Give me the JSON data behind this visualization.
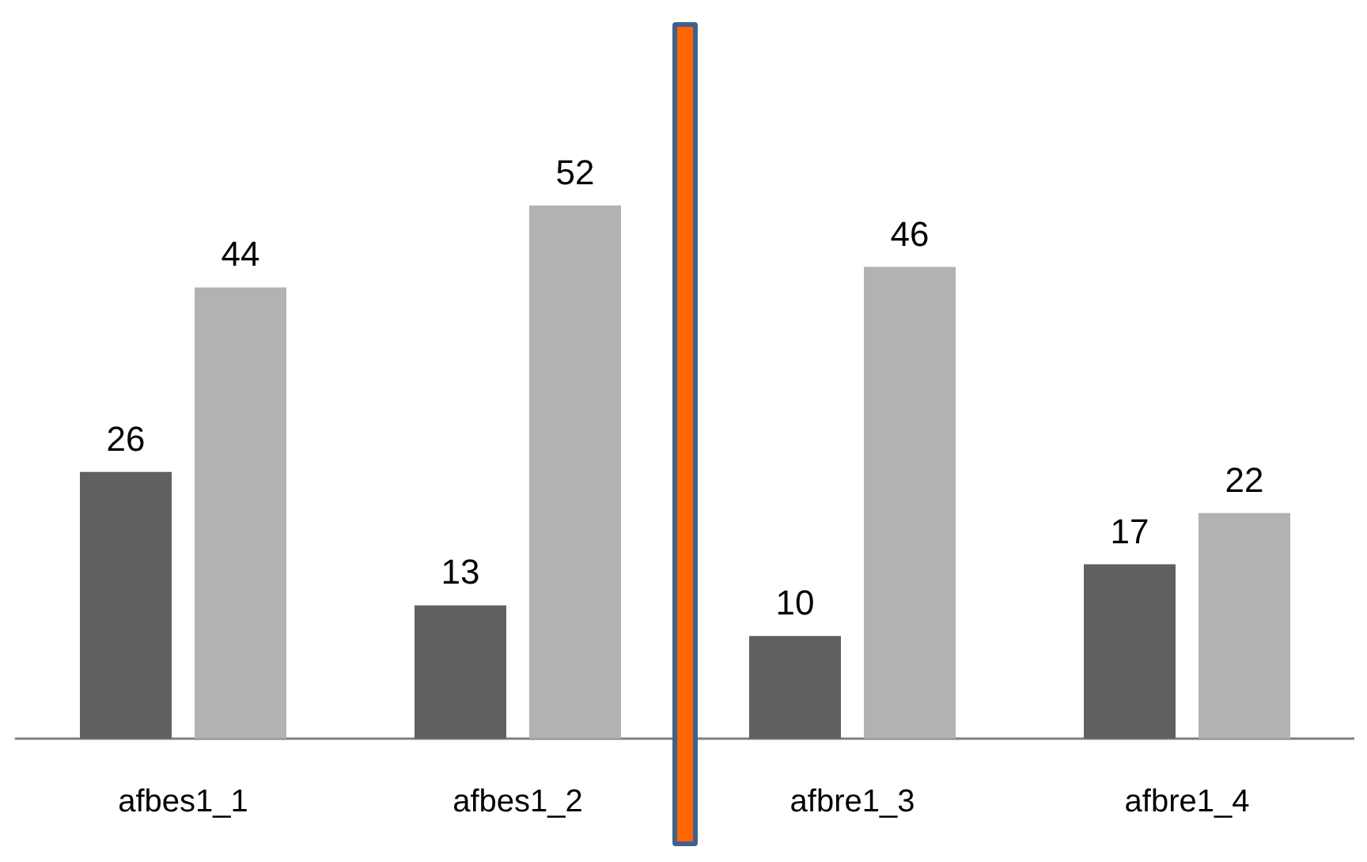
{
  "chart_data": {
    "type": "bar",
    "categories": [
      "afbes1_1",
      "afbes1_2",
      "afbre1_3",
      "afbre1_4"
    ],
    "series": [
      {
        "color": "#606060",
        "values": [
          26,
          13,
          10,
          17
        ]
      },
      {
        "color": "#b2b2b2",
        "values": [
          44,
          52,
          46,
          22
        ]
      }
    ],
    "data_labels": true
  }
}
